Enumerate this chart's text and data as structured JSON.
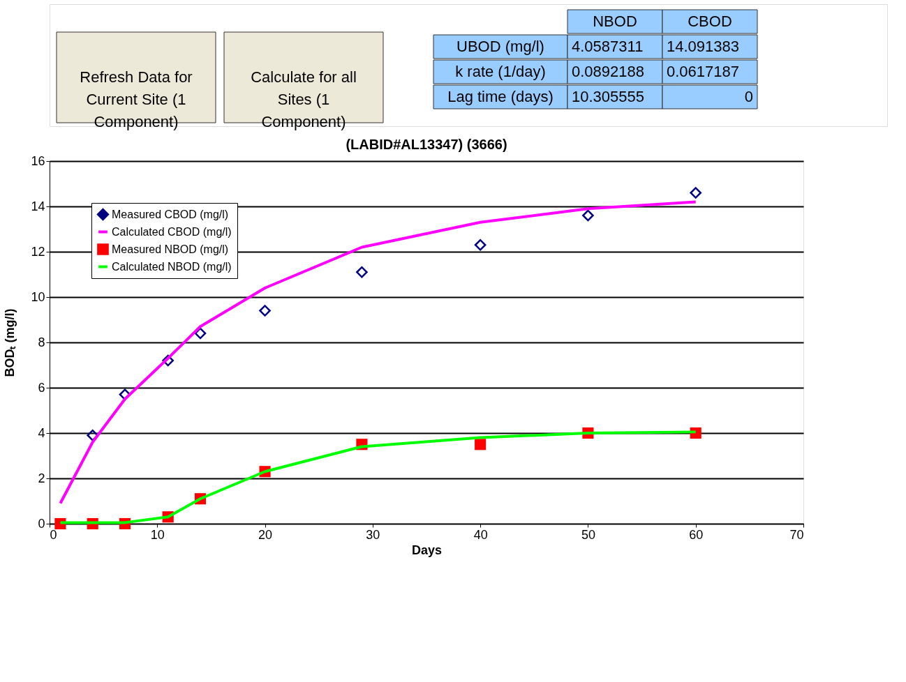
{
  "chart_data": [
    {
      "type": "other",
      "annotations": [
        "Refresh Data for Current Site (1 Component)",
        "Calculate for all Sites (1 Component)",
        "NBOD",
        "CBOD",
        "UBOD (mg/l)",
        "4.0587311",
        "14.091383",
        "k rate (1/day)",
        "0.0892188",
        "0.0617187",
        "Lag time (days)",
        "10.305555",
        "0"
      ]
    },
    {
      "type": "line",
      "title": "(LABID#AL13347)  (3666)",
      "xlabel": "Days",
      "ylabel": "BODₜ (mg/l)",
      "xlim": [
        0,
        70
      ],
      "xticks": [
        0,
        10,
        20,
        30,
        40,
        50,
        60,
        70
      ],
      "ylim": [
        0,
        16
      ],
      "yticks": [
        0,
        2,
        4,
        6,
        8,
        10,
        12,
        14,
        16
      ],
      "grid": "y",
      "legend": "top left",
      "series": [
        {
          "name": "Measured CBOD (mg/l)",
          "type": "scatter",
          "marker": "diamond",
          "color": "#000080",
          "x": [
            4,
            7,
            11,
            14,
            20,
            29,
            40,
            50,
            60
          ],
          "values": [
            3.9,
            5.7,
            7.2,
            8.4,
            9.4,
            11.1,
            12.3,
            13.6,
            14.6
          ]
        },
        {
          "name": "Calculated CBOD (mg/l)",
          "type": "line",
          "marker": "none",
          "color": "#ff00ff",
          "x": [
            1,
            4,
            7,
            11,
            14,
            20,
            29,
            40,
            50,
            60
          ],
          "values": [
            0.9,
            3.6,
            5.5,
            7.3,
            8.7,
            10.4,
            12.2,
            13.3,
            13.9,
            14.2
          ]
        },
        {
          "name": "Measured NBOD (mg/l)",
          "type": "scatter",
          "marker": "square",
          "color": "#ff0000",
          "x": [
            1,
            4,
            7,
            11,
            14,
            20,
            29,
            40,
            50,
            60
          ],
          "values": [
            0,
            0,
            0,
            0.3,
            1.1,
            2.3,
            3.5,
            3.5,
            4.0,
            4.0
          ]
        },
        {
          "name": "Calculated NBOD (mg/l)",
          "type": "line",
          "marker": "none",
          "color": "#00ff00",
          "x": [
            1,
            4,
            7,
            11,
            14,
            20,
            29,
            40,
            50,
            60
          ],
          "values": [
            0.05,
            0.05,
            0.05,
            0.3,
            1.1,
            2.3,
            3.4,
            3.8,
            4.0,
            4.05
          ]
        }
      ]
    }
  ]
}
